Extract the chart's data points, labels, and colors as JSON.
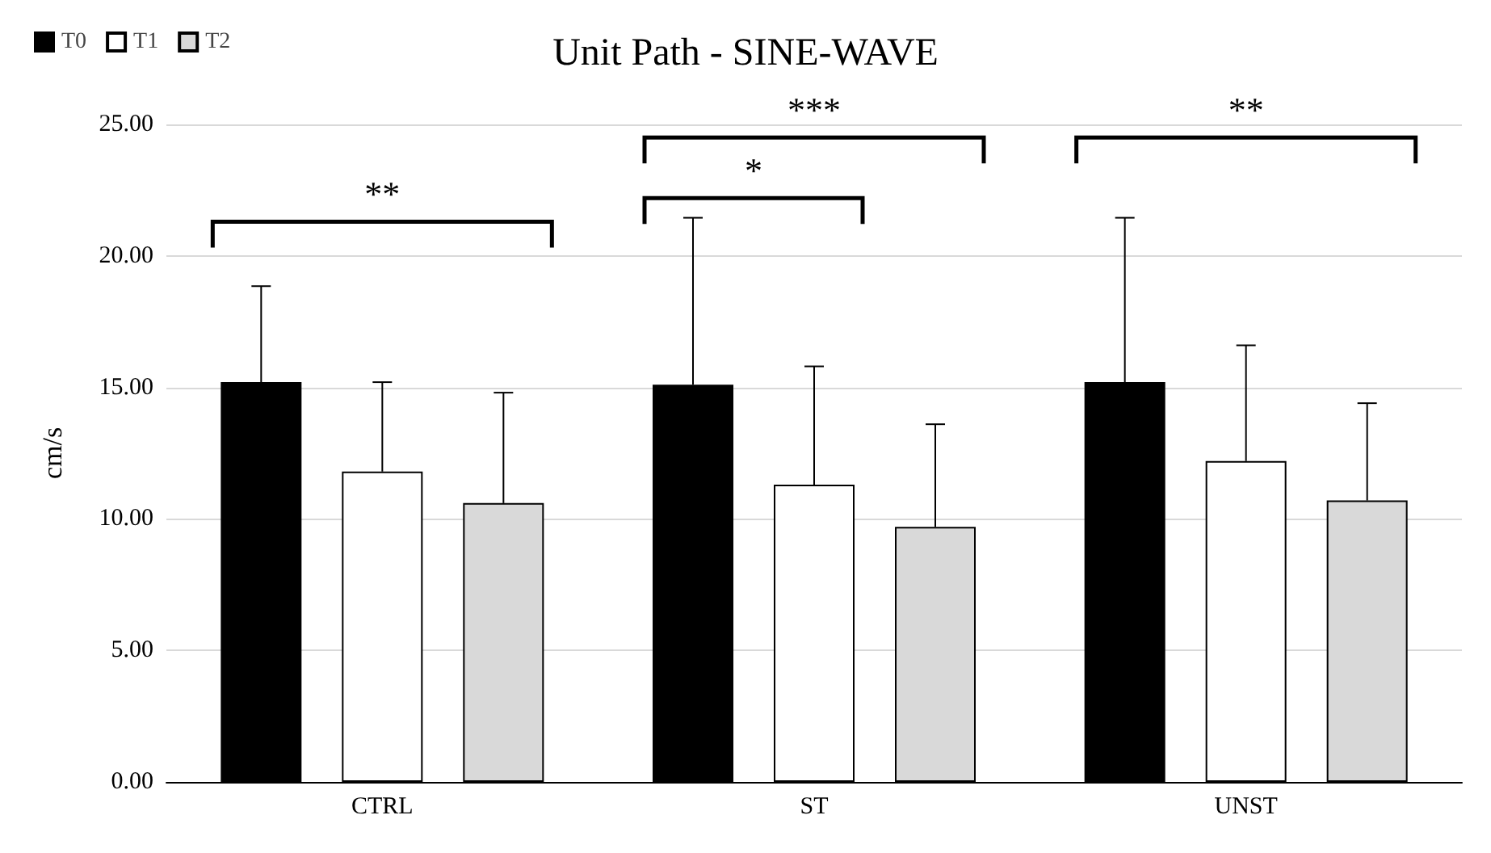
{
  "chart_data": {
    "type": "bar",
    "title": "Unit Path - SINE-WAVE",
    "ylabel": "cm/s",
    "categories": [
      "CTRL",
      "ST",
      "UNST"
    ],
    "series": [
      {
        "name": "T0",
        "color": "#000000",
        "values": [
          15.2,
          15.1,
          15.2
        ],
        "errors": [
          [
            15.2,
            18.85
          ],
          [
            15.1,
            21.45
          ],
          [
            15.2,
            21.45
          ]
        ]
      },
      {
        "name": "T1",
        "color": "#ffffff",
        "values": [
          11.8,
          11.3,
          12.2
        ],
        "errors": [
          [
            11.8,
            15.2
          ],
          [
            11.3,
            15.8
          ],
          [
            12.2,
            16.6
          ]
        ]
      },
      {
        "name": "T2",
        "color": "#d9d9d9",
        "values": [
          10.6,
          9.7,
          10.7
        ],
        "errors": [
          [
            10.6,
            14.8
          ],
          [
            9.7,
            13.6
          ],
          [
            10.7,
            14.4
          ]
        ]
      }
    ],
    "annotations": [
      "**",
      "*",
      "***",
      "**"
    ],
    "ylim": [
      0,
      25
    ],
    "yticks": [
      {
        "value": 0,
        "label": "0.00"
      },
      {
        "value": 5,
        "label": "5.00"
      },
      {
        "value": 10,
        "label": "10.00"
      },
      {
        "value": 15,
        "label": "15.00"
      },
      {
        "value": 20,
        "label": "20.00"
      },
      {
        "value": 25,
        "label": "25.00"
      }
    ],
    "grid": "y",
    "legend": "top left"
  }
}
